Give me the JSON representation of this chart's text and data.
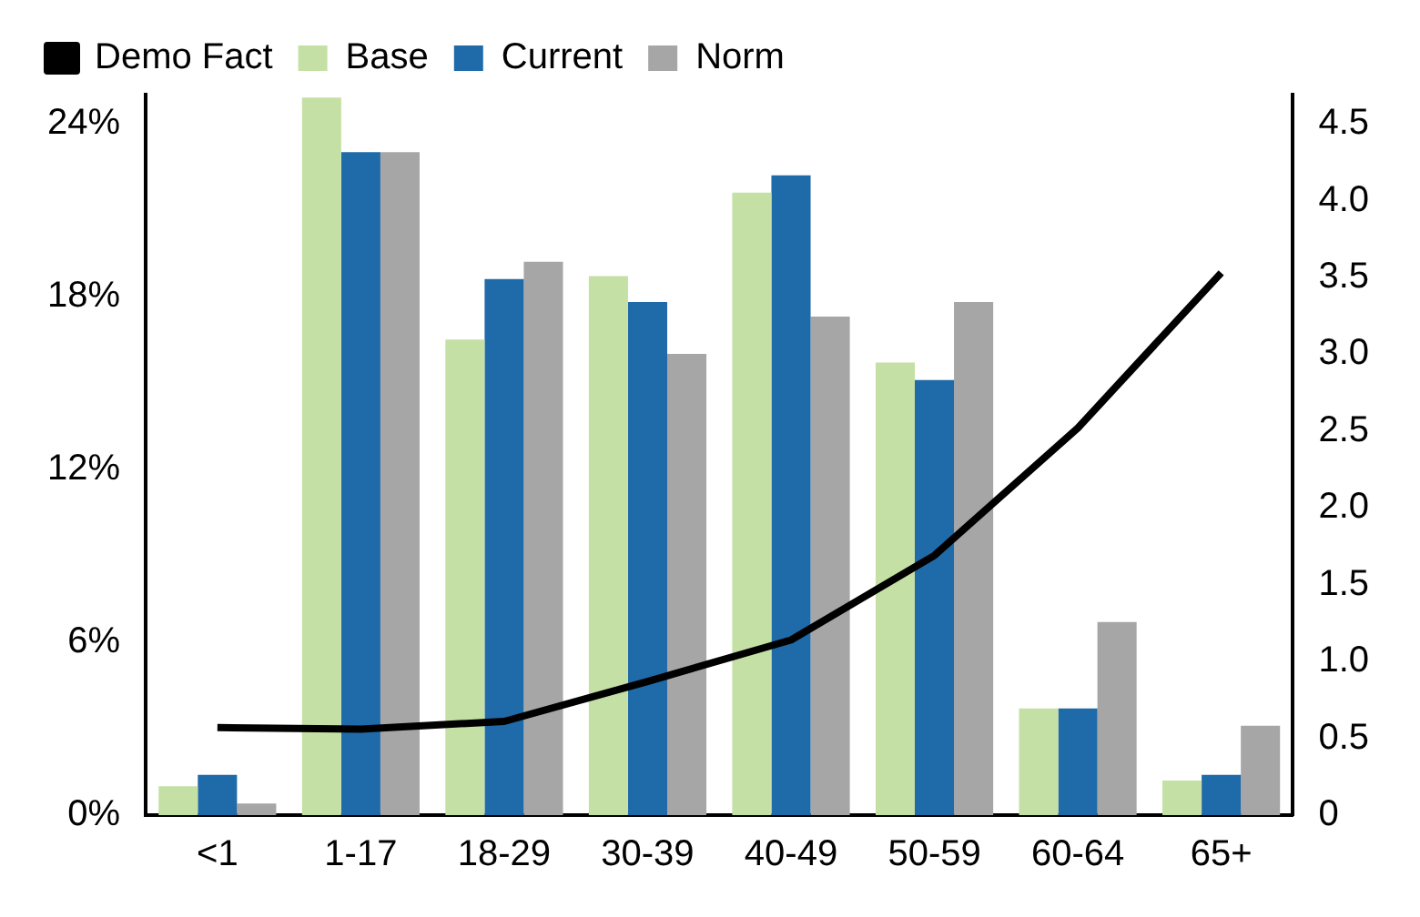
{
  "chart_data": {
    "type": "bar",
    "categories": [
      "<1",
      "1-17",
      "18-29",
      "30-39",
      "40-49",
      "50-59",
      "60-64",
      "65+"
    ],
    "series": [
      {
        "name": "Base",
        "color": "#c5e0a5",
        "values": [
          1.0,
          24.9,
          16.5,
          18.7,
          21.6,
          15.7,
          3.7,
          1.2
        ]
      },
      {
        "name": "Current",
        "color": "#1f6aa8",
        "values": [
          1.4,
          23.0,
          18.6,
          17.8,
          22.2,
          15.1,
          3.7,
          1.4
        ]
      },
      {
        "name": "Norm",
        "color": "#a6a6a6",
        "values": [
          0.4,
          23.0,
          19.2,
          16.0,
          17.3,
          17.8,
          6.7,
          3.1
        ]
      },
      {
        "name": "Demo Fact",
        "type": "line",
        "axis": "y2",
        "color": "#000000",
        "values": [
          0.57,
          0.56,
          0.61,
          0.87,
          1.14,
          1.69,
          2.52,
          3.53
        ]
      }
    ],
    "ylim": [
      0,
      25
    ],
    "yticks": [
      {
        "value": 0,
        "label": "0%"
      },
      {
        "value": 6,
        "label": "6%"
      },
      {
        "value": 12,
        "label": "12%"
      },
      {
        "value": 18,
        "label": "18%"
      },
      {
        "value": 24,
        "label": "24%"
      }
    ],
    "y2lim": [
      0,
      4.69
    ],
    "y2ticks": [
      0,
      0.5,
      {
        "value": 1,
        "label": "1.0"
      },
      1.5,
      {
        "value": 2,
        "label": "2.0"
      },
      2.5,
      {
        "value": 3,
        "label": "3.0"
      },
      3.5,
      {
        "value": 4,
        "label": "4.0"
      },
      4.5
    ],
    "grid": false,
    "legend": "top left",
    "marker": "none"
  }
}
